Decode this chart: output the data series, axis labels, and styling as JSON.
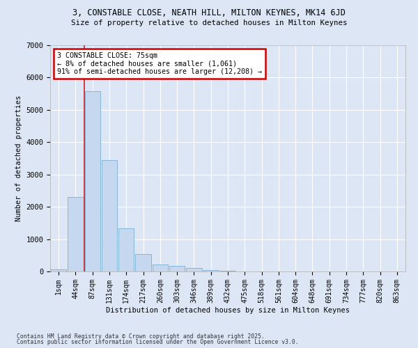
{
  "title_line1": "3, CONSTABLE CLOSE, NEATH HILL, MILTON KEYNES, MK14 6JD",
  "title_line2": "Size of property relative to detached houses in Milton Keynes",
  "xlabel": "Distribution of detached houses by size in Milton Keynes",
  "ylabel": "Number of detached properties",
  "categories": [
    "1sqm",
    "44sqm",
    "87sqm",
    "131sqm",
    "174sqm",
    "217sqm",
    "260sqm",
    "303sqm",
    "346sqm",
    "389sqm",
    "432sqm",
    "475sqm",
    "518sqm",
    "561sqm",
    "604sqm",
    "648sqm",
    "691sqm",
    "734sqm",
    "777sqm",
    "820sqm",
    "863sqm"
  ],
  "bar_heights": [
    75,
    2300,
    5580,
    3450,
    1340,
    540,
    220,
    175,
    100,
    50,
    20,
    5,
    2,
    1,
    1,
    0,
    0,
    0,
    0,
    0,
    0
  ],
  "bar_color": "#c5d8f0",
  "bar_edge_color": "#7aafd4",
  "vline_color": "#cc2222",
  "annotation_text": "3 CONSTABLE CLOSE: 75sqm\n← 8% of detached houses are smaller (1,061)\n91% of semi-detached houses are larger (12,208) →",
  "annotation_box_color": "#ffffff",
  "annotation_edge_color": "#cc0000",
  "background_color": "#dce6f5",
  "grid_color": "#ffffff",
  "footer_line1": "Contains HM Land Registry data © Crown copyright and database right 2025.",
  "footer_line2": "Contains public sector information licensed under the Open Government Licence v3.0.",
  "ylim": [
    0,
    7000
  ],
  "yticks": [
    0,
    1000,
    2000,
    3000,
    4000,
    5000,
    6000,
    7000
  ],
  "property_line_idx": 1.5
}
